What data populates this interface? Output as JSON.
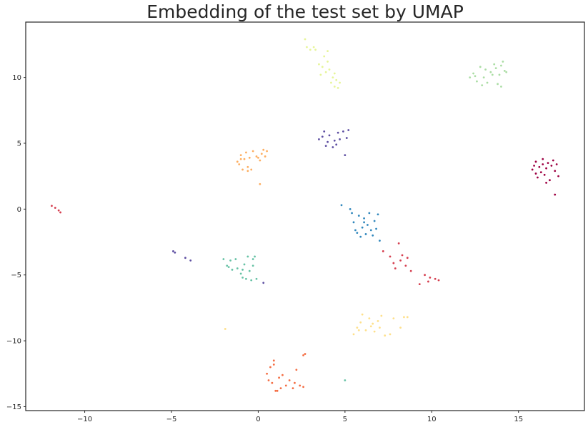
{
  "chart_data": {
    "type": "scatter",
    "title": "Embedding of the test set by UMAP",
    "xlabel": "",
    "ylabel": "",
    "xlim": [
      -13.4,
      18.8
    ],
    "ylim": [
      -15.3,
      14.2
    ],
    "xticks": [
      -10,
      -5,
      0,
      5,
      10,
      15
    ],
    "yticks": [
      -15,
      -10,
      -5,
      0,
      5,
      10
    ],
    "grid": false,
    "legend": "none",
    "series": [
      {
        "color": "#9e0142",
        "points": [
          [
            15.8,
            3.0
          ],
          [
            16.0,
            3.6
          ],
          [
            16.1,
            2.4
          ],
          [
            16.2,
            3.2
          ],
          [
            16.3,
            2.8
          ],
          [
            16.4,
            3.8
          ],
          [
            16.5,
            2.6
          ],
          [
            16.6,
            3.1
          ],
          [
            16.7,
            3.5
          ],
          [
            16.8,
            2.2
          ],
          [
            16.9,
            3.3
          ],
          [
            17.0,
            3.7
          ],
          [
            17.1,
            2.9
          ],
          [
            17.2,
            3.4
          ],
          [
            17.3,
            2.5
          ],
          [
            16.0,
            2.7
          ],
          [
            16.4,
            3.4
          ],
          [
            17.1,
            1.1
          ],
          [
            16.6,
            2.0
          ],
          [
            15.9,
            3.3
          ]
        ]
      },
      {
        "color": "#d53e4f",
        "points": [
          [
            -11.9,
            0.25
          ],
          [
            -11.7,
            0.1
          ],
          [
            -11.5,
            -0.1
          ],
          [
            -11.4,
            -0.25
          ],
          [
            7.2,
            -3.2
          ],
          [
            7.6,
            -3.6
          ],
          [
            7.8,
            -4.1
          ],
          [
            7.9,
            -4.5
          ],
          [
            8.2,
            -3.9
          ],
          [
            8.3,
            -3.5
          ],
          [
            8.5,
            -4.3
          ],
          [
            8.6,
            -3.7
          ],
          [
            8.8,
            -4.7
          ],
          [
            8.1,
            -2.6
          ],
          [
            9.6,
            -5.0
          ],
          [
            9.9,
            -5.2
          ],
          [
            10.2,
            -5.3
          ],
          [
            10.4,
            -5.4
          ],
          [
            9.3,
            -5.7
          ],
          [
            9.8,
            -5.5
          ]
        ]
      },
      {
        "color": "#f46d43",
        "points": [
          [
            0.5,
            -12.5
          ],
          [
            0.7,
            -12.0
          ],
          [
            0.8,
            -13.2
          ],
          [
            0.9,
            -11.8
          ],
          [
            1.0,
            -13.8
          ],
          [
            1.1,
            -13.8
          ],
          [
            1.2,
            -12.8
          ],
          [
            1.3,
            -13.6
          ],
          [
            1.4,
            -12.6
          ],
          [
            1.6,
            -13.4
          ],
          [
            1.8,
            -13.0
          ],
          [
            2.0,
            -13.6
          ],
          [
            2.2,
            -12.2
          ],
          [
            2.4,
            -13.4
          ],
          [
            2.6,
            -13.5
          ],
          [
            2.6,
            -11.1
          ],
          [
            2.7,
            -11.0
          ],
          [
            0.9,
            -11.5
          ],
          [
            0.6,
            -13.0
          ],
          [
            2.1,
            -13.2
          ]
        ]
      },
      {
        "color": "#fdae61",
        "points": [
          [
            -1.2,
            3.6
          ],
          [
            -1.0,
            4.1
          ],
          [
            -0.9,
            3.0
          ],
          [
            -0.8,
            3.8
          ],
          [
            -0.7,
            4.3
          ],
          [
            -0.6,
            3.2
          ],
          [
            -0.5,
            3.9
          ],
          [
            -0.4,
            3.0
          ],
          [
            -0.3,
            4.4
          ],
          [
            -0.1,
            4.0
          ],
          [
            0.1,
            3.7
          ],
          [
            0.2,
            4.2
          ],
          [
            0.3,
            4.5
          ],
          [
            0.5,
            4.4
          ],
          [
            0.0,
            3.9
          ],
          [
            -1.1,
            3.4
          ],
          [
            -0.6,
            2.9
          ],
          [
            0.1,
            1.9
          ],
          [
            -1.0,
            3.8
          ],
          [
            0.4,
            4.0
          ]
        ]
      },
      {
        "color": "#fee08b",
        "points": [
          [
            5.5,
            -9.5
          ],
          [
            5.7,
            -9.0
          ],
          [
            5.9,
            -8.6
          ],
          [
            6.0,
            -8.0
          ],
          [
            6.2,
            -9.2
          ],
          [
            6.4,
            -8.3
          ],
          [
            6.5,
            -8.9
          ],
          [
            6.7,
            -9.3
          ],
          [
            6.9,
            -8.5
          ],
          [
            7.1,
            -8.1
          ],
          [
            7.3,
            -9.6
          ],
          [
            7.6,
            -9.5
          ],
          [
            7.8,
            -8.3
          ],
          [
            8.2,
            -9.0
          ],
          [
            8.4,
            -8.2
          ],
          [
            8.6,
            -8.2
          ],
          [
            5.8,
            -9.2
          ],
          [
            6.6,
            -8.7
          ],
          [
            -1.9,
            -9.1
          ],
          [
            7.0,
            -9.0
          ]
        ]
      },
      {
        "color": "#e6f598",
        "points": [
          [
            2.7,
            12.9
          ],
          [
            2.8,
            12.3
          ],
          [
            3.0,
            12.1
          ],
          [
            3.2,
            12.3
          ],
          [
            3.5,
            11.0
          ],
          [
            3.7,
            10.8
          ],
          [
            3.8,
            11.6
          ],
          [
            3.9,
            10.4
          ],
          [
            4.0,
            12.0
          ],
          [
            4.1,
            10.6
          ],
          [
            4.2,
            9.6
          ],
          [
            4.3,
            10.0
          ],
          [
            4.4,
            9.3
          ],
          [
            4.5,
            9.8
          ],
          [
            4.6,
            9.2
          ],
          [
            3.6,
            10.2
          ],
          [
            4.0,
            11.2
          ],
          [
            4.7,
            9.6
          ],
          [
            3.3,
            12.1
          ],
          [
            4.4,
            10.3
          ]
        ]
      },
      {
        "color": "#abdda4",
        "points": [
          [
            12.2,
            10.0
          ],
          [
            12.4,
            10.3
          ],
          [
            12.6,
            9.7
          ],
          [
            12.8,
            10.8
          ],
          [
            13.0,
            10.0
          ],
          [
            13.2,
            9.6
          ],
          [
            13.4,
            10.4
          ],
          [
            13.6,
            11.0
          ],
          [
            13.8,
            9.5
          ],
          [
            13.9,
            10.2
          ],
          [
            14.0,
            10.9
          ],
          [
            14.1,
            11.2
          ],
          [
            14.2,
            10.5
          ],
          [
            14.3,
            10.4
          ],
          [
            12.5,
            10.1
          ],
          [
            13.1,
            10.6
          ],
          [
            13.5,
            10.2
          ],
          [
            14.0,
            9.3
          ],
          [
            12.9,
            9.4
          ],
          [
            13.7,
            10.7
          ]
        ]
      },
      {
        "color": "#66c2a5",
        "points": [
          [
            -2.0,
            -3.8
          ],
          [
            -1.8,
            -4.3
          ],
          [
            -1.6,
            -3.9
          ],
          [
            -1.5,
            -4.6
          ],
          [
            -1.2,
            -4.5
          ],
          [
            -1.0,
            -4.9
          ],
          [
            -0.9,
            -5.2
          ],
          [
            -0.8,
            -4.2
          ],
          [
            -0.7,
            -5.3
          ],
          [
            -0.6,
            -3.6
          ],
          [
            -0.5,
            -4.7
          ],
          [
            -0.4,
            -5.4
          ],
          [
            -0.3,
            -3.8
          ],
          [
            -0.2,
            -3.6
          ],
          [
            -0.1,
            -5.3
          ],
          [
            -1.7,
            -4.4
          ],
          [
            -0.9,
            -4.6
          ],
          [
            -0.3,
            -4.3
          ],
          [
            5.0,
            -13.0
          ],
          [
            -1.3,
            -3.8
          ]
        ]
      },
      {
        "color": "#3288bd",
        "points": [
          [
            4.8,
            0.3
          ],
          [
            5.4,
            -0.3
          ],
          [
            5.5,
            -1.0
          ],
          [
            5.6,
            -1.6
          ],
          [
            5.8,
            -0.5
          ],
          [
            5.9,
            -2.1
          ],
          [
            6.0,
            -1.4
          ],
          [
            6.1,
            -0.7
          ],
          [
            6.2,
            -1.9
          ],
          [
            6.3,
            -1.2
          ],
          [
            6.4,
            -0.3
          ],
          [
            6.5,
            -1.6
          ],
          [
            6.6,
            -2.0
          ],
          [
            6.7,
            -0.9
          ],
          [
            6.8,
            -1.5
          ],
          [
            6.9,
            -0.4
          ],
          [
            5.3,
            0.0
          ],
          [
            6.1,
            -1.0
          ],
          [
            7.0,
            -2.4
          ],
          [
            5.7,
            -1.8
          ]
        ]
      },
      {
        "color": "#5e4fa2",
        "points": [
          [
            3.5,
            5.3
          ],
          [
            3.7,
            5.5
          ],
          [
            3.8,
            5.9
          ],
          [
            3.9,
            4.8
          ],
          [
            4.0,
            5.1
          ],
          [
            4.1,
            5.6
          ],
          [
            4.3,
            4.7
          ],
          [
            4.4,
            5.2
          ],
          [
            4.6,
            5.8
          ],
          [
            4.7,
            5.3
          ],
          [
            4.9,
            5.9
          ],
          [
            5.0,
            4.1
          ],
          [
            5.1,
            5.4
          ],
          [
            5.2,
            6.0
          ],
          [
            4.5,
            4.9
          ],
          [
            -4.9,
            -3.2
          ],
          [
            -4.8,
            -3.3
          ],
          [
            -4.2,
            -3.7
          ],
          [
            -3.9,
            -3.9
          ],
          [
            0.3,
            -5.6
          ]
        ]
      }
    ]
  }
}
